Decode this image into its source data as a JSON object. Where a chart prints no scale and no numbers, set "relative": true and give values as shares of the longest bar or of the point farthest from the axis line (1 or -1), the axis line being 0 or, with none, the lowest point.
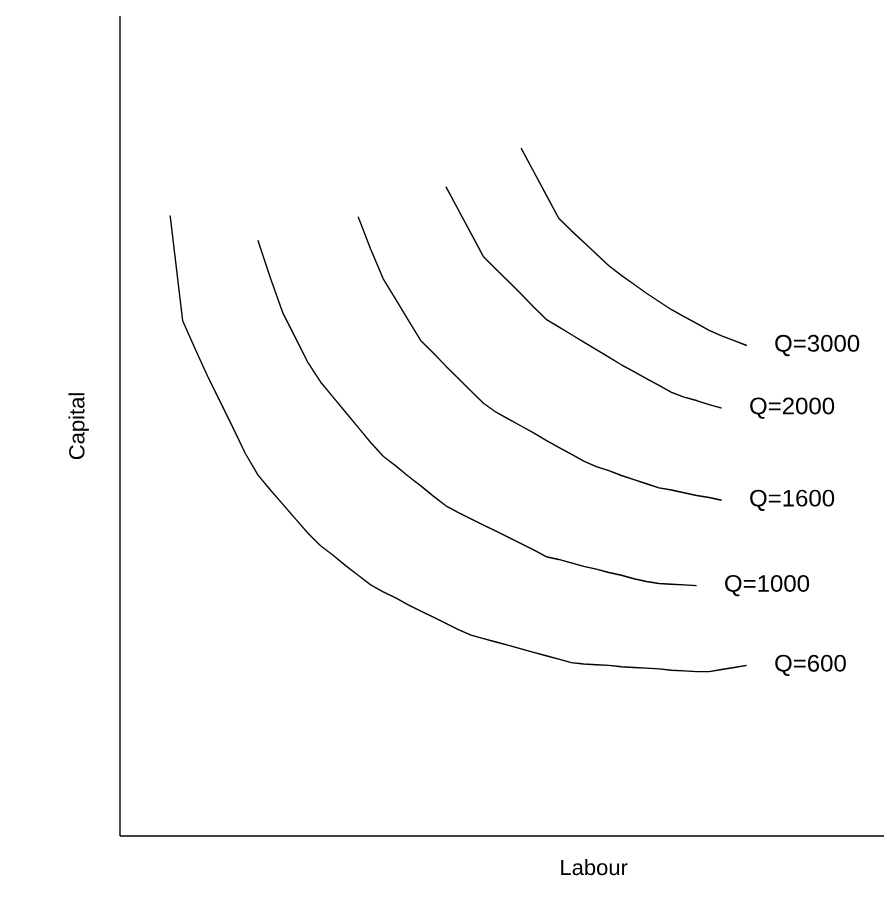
{
  "chart_data": {
    "type": "line",
    "xlabel": "Labour",
    "ylabel": "Capital",
    "relative": true,
    "categories": [
      null,
      null,
      null,
      null,
      null,
      null,
      null,
      null,
      null,
      null,
      null,
      null,
      null,
      null,
      null,
      null,
      null,
      null,
      null,
      null,
      null,
      null,
      null,
      null,
      null,
      null,
      null,
      null,
      null,
      null,
      null,
      null,
      null,
      null,
      null,
      null,
      null,
      null,
      null,
      null,
      null,
      null,
      null,
      null,
      null,
      null,
      null,
      null,
      null,
      null,
      null
    ],
    "series": [
      {
        "name": "Q=3000",
        "color": "#000000",
        "values": [
          null,
          null,
          null,
          null,
          null,
          null,
          null,
          null,
          null,
          null,
          null,
          null,
          null,
          null,
          null,
          null,
          null,
          null,
          null,
          null,
          null,
          null,
          null,
          null,
          null,
          null,
          null,
          null,
          null,
          null,
          null,
          null,
          1,
          0.966,
          0.932,
          0.898,
          0.88,
          0.863,
          0.846,
          0.829,
          0.815,
          0.802,
          0.789,
          0.777,
          0.765,
          0.755,
          0.745,
          0.735,
          0.727,
          0.72,
          0.713
        ]
      },
      {
        "name": "Q=2000",
        "color": "#000000",
        "values": [
          null,
          null,
          null,
          null,
          null,
          null,
          null,
          null,
          null,
          null,
          null,
          null,
          null,
          null,
          null,
          null,
          null,
          null,
          null,
          null,
          null,
          null,
          null,
          null,
          null,
          null,
          0.944,
          0.91,
          0.876,
          0.842,
          0.824,
          0.806,
          0.788,
          0.769,
          0.751,
          0.74,
          0.729,
          0.718,
          0.707,
          0.696,
          0.685,
          0.675,
          0.665,
          0.655,
          0.645,
          0.638,
          0.633,
          0.627,
          0.622,
          null,
          null
        ]
      },
      {
        "name": "Q=1600",
        "color": "#000000",
        "values": [
          null,
          null,
          null,
          null,
          null,
          null,
          null,
          null,
          null,
          null,
          null,
          null,
          null,
          null,
          null,
          null,
          null,
          null,
          null,
          0.9,
          0.853,
          0.81,
          0.78,
          0.75,
          0.72,
          0.702,
          0.683,
          0.665,
          0.647,
          0.629,
          0.616,
          0.606,
          0.596,
          0.586,
          0.575,
          0.565,
          0.555,
          0.545,
          0.537,
          0.531,
          0.524,
          0.518,
          0.512,
          0.506,
          0.503,
          0.499,
          0.495,
          0.492,
          0.488,
          null,
          null
        ]
      },
      {
        "name": "Q=1000",
        "color": "#000000",
        "values": [
          null,
          null,
          null,
          null,
          null,
          null,
          null,
          null,
          null,
          null,
          null,
          0.866,
          0.811,
          0.76,
          0.724,
          0.688,
          0.66,
          0.638,
          0.616,
          0.594,
          0.572,
          0.552,
          0.538,
          0.523,
          0.509,
          0.494,
          0.48,
          0.47,
          0.461,
          0.452,
          0.443,
          0.434,
          0.425,
          0.416,
          0.406,
          0.402,
          0.397,
          0.392,
          0.388,
          0.383,
          0.379,
          0.374,
          0.37,
          0.367,
          0.366,
          0.365,
          0.364,
          null,
          null,
          null,
          null
        ]
      },
      {
        "name": "Q=600",
        "color": "#000000",
        "values": [
          null,
          null,
          null,
          null,
          0.902,
          0.749,
          0.708,
          0.668,
          0.631,
          0.594,
          0.556,
          0.525,
          0.503,
          0.482,
          0.461,
          0.44,
          0.422,
          0.408,
          0.393,
          0.379,
          0.365,
          0.355,
          0.346,
          0.336,
          0.327,
          0.318,
          0.309,
          0.3,
          0.292,
          0.287,
          0.282,
          0.277,
          0.272,
          0.267,
          0.262,
          0.257,
          0.252,
          0.25,
          0.249,
          0.248,
          0.246,
          0.245,
          0.244,
          0.243,
          0.241,
          0.24,
          0.239,
          0.239,
          0.242,
          0.245,
          0.248
        ]
      }
    ]
  }
}
